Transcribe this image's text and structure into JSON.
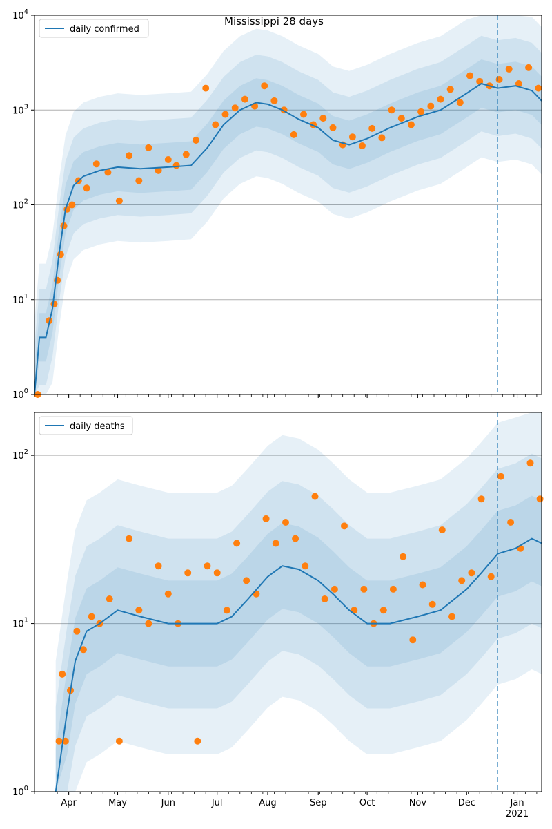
{
  "chart_data": [
    {
      "type": "line",
      "title": "Mississippi 28 days",
      "yscale": "log",
      "ylim": [
        1,
        10000
      ],
      "y_ticks": [
        {
          "value": 1,
          "base": "10",
          "exp": "0"
        },
        {
          "value": 10,
          "base": "10",
          "exp": "1"
        },
        {
          "value": 100,
          "base": "10",
          "exp": "2"
        },
        {
          "value": 1000,
          "base": "10",
          "exp": "3"
        },
        {
          "value": 10000,
          "base": "10",
          "exp": "4"
        }
      ],
      "grid": "horizontal",
      "legend": {
        "position": "top-left",
        "label": "daily confirmed"
      },
      "forecast_start": "2020-12-20",
      "colors": {
        "line": "#1f77b4",
        "points": "#ff7f0e",
        "band": "#1f77b4"
      },
      "series": [
        {
          "name": "daily confirmed",
          "kind": "line",
          "x": [
            "2020-03-11",
            "2020-03-14",
            "2020-03-18",
            "2020-03-22",
            "2020-03-26",
            "2020-03-30",
            "2020-04-04",
            "2020-04-10",
            "2020-04-20",
            "2020-05-01",
            "2020-05-15",
            "2020-06-01",
            "2020-06-15",
            "2020-06-25",
            "2020-07-05",
            "2020-07-15",
            "2020-07-25",
            "2020-08-01",
            "2020-08-10",
            "2020-08-20",
            "2020-09-01",
            "2020-09-10",
            "2020-09-20",
            "2020-10-01",
            "2020-10-15",
            "2020-11-01",
            "2020-11-15",
            "2020-12-01",
            "2020-12-10",
            "2020-12-20",
            "2020-12-31",
            "2021-01-10",
            "2021-01-16"
          ],
          "y": [
            1,
            4,
            4,
            8,
            30,
            90,
            160,
            200,
            230,
            250,
            240,
            250,
            260,
            400,
            700,
            1000,
            1200,
            1150,
            1000,
            800,
            650,
            480,
            430,
            500,
            650,
            850,
            1000,
            1500,
            1900,
            1700,
            1800,
            1600,
            1250
          ]
        },
        {
          "name": "",
          "kind": "scatter",
          "x": [
            "2020-03-13",
            "2020-03-20",
            "2020-03-23",
            "2020-03-25",
            "2020-03-27",
            "2020-03-29",
            "2020-03-31",
            "2020-04-03",
            "2020-04-07",
            "2020-04-12",
            "2020-04-18",
            "2020-04-25",
            "2020-05-02",
            "2020-05-08",
            "2020-05-14",
            "2020-05-20",
            "2020-05-26",
            "2020-06-01",
            "2020-06-06",
            "2020-06-12",
            "2020-06-18",
            "2020-06-24",
            "2020-06-30",
            "2020-07-06",
            "2020-07-12",
            "2020-07-18",
            "2020-07-24",
            "2020-07-30",
            "2020-08-05",
            "2020-08-11",
            "2020-08-17",
            "2020-08-23",
            "2020-08-29",
            "2020-09-04",
            "2020-09-10",
            "2020-09-16",
            "2020-09-22",
            "2020-09-28",
            "2020-10-04",
            "2020-10-10",
            "2020-10-16",
            "2020-10-22",
            "2020-10-28",
            "2020-11-03",
            "2020-11-09",
            "2020-11-15",
            "2020-11-21",
            "2020-11-27",
            "2020-12-03",
            "2020-12-09",
            "2020-12-15",
            "2020-12-21",
            "2020-12-27",
            "2021-01-02",
            "2021-01-08",
            "2021-01-14"
          ],
          "y": [
            1,
            6,
            9,
            16,
            30,
            60,
            90,
            100,
            180,
            150,
            270,
            220,
            110,
            330,
            180,
            400,
            230,
            300,
            260,
            340,
            480,
            1700,
            700,
            900,
            1050,
            1300,
            1100,
            1800,
            1250,
            1000,
            550,
            900,
            700,
            820,
            650,
            430,
            520,
            420,
            640,
            510,
            1000,
            820,
            700,
            960,
            1100,
            1300,
            1650,
            1200,
            2300,
            2000,
            1800,
            2100,
            2700,
            1900,
            2800,
            1700
          ]
        }
      ]
    },
    {
      "type": "line",
      "title": "",
      "yscale": "log",
      "ylim": [
        1,
        180
      ],
      "y_ticks": [
        {
          "value": 1,
          "base": "10",
          "exp": "0"
        },
        {
          "value": 10,
          "base": "10",
          "exp": "1"
        },
        {
          "value": 100,
          "base": "10",
          "exp": "2"
        }
      ],
      "grid": "horizontal",
      "legend": {
        "position": "top-left",
        "label": "daily deaths"
      },
      "forecast_start": "2020-12-20",
      "x_ticks": [
        {
          "date": "2020-04-01",
          "label": "Apr"
        },
        {
          "date": "2020-05-01",
          "label": "May"
        },
        {
          "date": "2020-06-01",
          "label": "Jun"
        },
        {
          "date": "2020-07-01",
          "label": "Jul"
        },
        {
          "date": "2020-08-01",
          "label": "Aug"
        },
        {
          "date": "2020-09-01",
          "label": "Sep"
        },
        {
          "date": "2020-10-01",
          "label": "Oct"
        },
        {
          "date": "2020-11-01",
          "label": "Nov"
        },
        {
          "date": "2020-12-01",
          "label": "Dec"
        },
        {
          "date": "2021-01-01",
          "label": "Jan"
        }
      ],
      "x_year_label": "2021",
      "xlim": [
        "2020-03-11",
        "2021-01-16"
      ],
      "colors": {
        "line": "#1f77b4",
        "points": "#ff7f0e",
        "band": "#1f77b4"
      },
      "series": [
        {
          "name": "daily deaths",
          "kind": "line",
          "x": [
            "2020-03-24",
            "2020-03-31",
            "2020-04-05",
            "2020-04-12",
            "2020-04-20",
            "2020-05-01",
            "2020-05-15",
            "2020-06-01",
            "2020-06-15",
            "2020-07-01",
            "2020-07-10",
            "2020-07-20",
            "2020-08-01",
            "2020-08-10",
            "2020-08-20",
            "2020-09-01",
            "2020-09-10",
            "2020-09-20",
            "2020-10-01",
            "2020-10-15",
            "2020-11-01",
            "2020-11-15",
            "2020-12-01",
            "2020-12-10",
            "2020-12-20",
            "2020-12-31",
            "2021-01-10",
            "2021-01-16"
          ],
          "y": [
            1,
            3,
            6,
            9,
            10,
            12,
            11,
            10,
            10,
            10,
            11,
            14,
            19,
            22,
            21,
            18,
            15,
            12,
            10,
            10,
            11,
            12,
            16,
            20,
            26,
            28,
            32,
            30
          ]
        },
        {
          "name": "",
          "kind": "scatter",
          "x": [
            "2020-03-26",
            "2020-03-28",
            "2020-03-30",
            "2020-04-02",
            "2020-04-06",
            "2020-04-10",
            "2020-04-15",
            "2020-04-20",
            "2020-04-26",
            "2020-05-02",
            "2020-05-08",
            "2020-05-14",
            "2020-05-20",
            "2020-05-26",
            "2020-06-01",
            "2020-06-07",
            "2020-06-13",
            "2020-06-19",
            "2020-06-25",
            "2020-07-01",
            "2020-07-07",
            "2020-07-13",
            "2020-07-19",
            "2020-07-25",
            "2020-07-31",
            "2020-08-06",
            "2020-08-12",
            "2020-08-18",
            "2020-08-24",
            "2020-08-30",
            "2020-09-05",
            "2020-09-11",
            "2020-09-17",
            "2020-09-23",
            "2020-09-29",
            "2020-10-05",
            "2020-10-11",
            "2020-10-17",
            "2020-10-23",
            "2020-10-29",
            "2020-11-04",
            "2020-11-10",
            "2020-11-16",
            "2020-11-22",
            "2020-11-28",
            "2020-12-04",
            "2020-12-10",
            "2020-12-16",
            "2020-12-22",
            "2020-12-28",
            "2021-01-03",
            "2021-01-09",
            "2021-01-15"
          ],
          "y": [
            2,
            5,
            2,
            4,
            9,
            7,
            11,
            10,
            14,
            2,
            32,
            12,
            10,
            22,
            15,
            10,
            20,
            2,
            22,
            20,
            12,
            30,
            18,
            15,
            42,
            30,
            40,
            32,
            22,
            57,
            14,
            16,
            38,
            12,
            16,
            10,
            12,
            16,
            25,
            8,
            17,
            13,
            36,
            11,
            18,
            20,
            55,
            19,
            75,
            40,
            28,
            90,
            55
          ]
        }
      ]
    }
  ]
}
